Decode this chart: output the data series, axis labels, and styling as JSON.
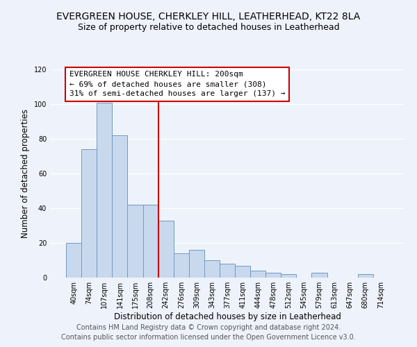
{
  "title": "EVERGREEN HOUSE, CHERKLEY HILL, LEATHERHEAD, KT22 8LA",
  "subtitle": "Size of property relative to detached houses in Leatherhead",
  "xlabel": "Distribution of detached houses by size in Leatherhead",
  "ylabel": "Number of detached properties",
  "bin_labels": [
    "40sqm",
    "74sqm",
    "107sqm",
    "141sqm",
    "175sqm",
    "208sqm",
    "242sqm",
    "276sqm",
    "309sqm",
    "343sqm",
    "377sqm",
    "411sqm",
    "444sqm",
    "478sqm",
    "512sqm",
    "545sqm",
    "579sqm",
    "613sqm",
    "647sqm",
    "680sqm",
    "714sqm"
  ],
  "bar_heights": [
    20,
    74,
    101,
    82,
    42,
    42,
    33,
    14,
    16,
    10,
    8,
    7,
    4,
    3,
    2,
    0,
    3,
    0,
    0,
    2,
    0
  ],
  "bar_color": "#c8d9ee",
  "bar_edge_color": "#7099c0",
  "vline_x_idx": 5,
  "vline_color": "#cc0000",
  "annotation_text": "EVERGREEN HOUSE CHERKLEY HILL: 200sqm\n← 69% of detached houses are smaller (308)\n31% of semi-detached houses are larger (137) →",
  "annotation_box_color": "white",
  "annotation_box_edge_color": "#cc0000",
  "ylim": [
    0,
    120
  ],
  "yticks": [
    0,
    20,
    40,
    60,
    80,
    100,
    120
  ],
  "footer_line1": "Contains HM Land Registry data © Crown copyright and database right 2024.",
  "footer_line2": "Contains public sector information licensed under the Open Government Licence v3.0.",
  "bg_color": "#eef2fa",
  "grid_color": "#ffffff",
  "title_fontsize": 10,
  "subtitle_fontsize": 9,
  "axis_label_fontsize": 8.5,
  "tick_fontsize": 7,
  "annotation_fontsize": 8,
  "footer_fontsize": 7
}
